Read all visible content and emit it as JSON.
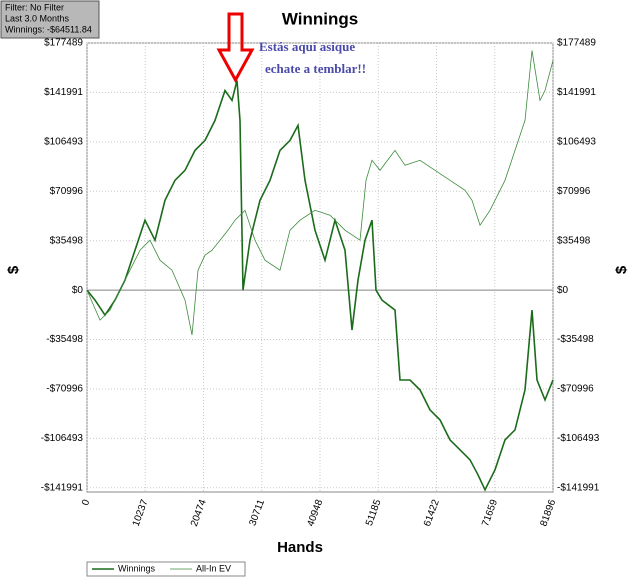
{
  "chart_data": {
    "type": "line",
    "title": "Winnings",
    "x_label": "Hands",
    "y_label": "$",
    "info": [
      "Filter: No Filter",
      "Last 3.0 Months",
      "Winnings: -$64511.84"
    ],
    "annotations": [
      "Estás aquí asique",
      "echate a temblar!!"
    ],
    "xlim": [
      0,
      81896
    ],
    "xticks": [
      0,
      10237,
      20474,
      30711,
      40948,
      51185,
      61422,
      71659,
      81896
    ],
    "ylim": [
      -145000,
      177489
    ],
    "yticks": [
      {
        "value": 177489,
        "label": "$177489"
      },
      {
        "value": 141991,
        "label": "$141991"
      },
      {
        "value": 106493,
        "label": "$106493"
      },
      {
        "value": 70996,
        "label": "$70996"
      },
      {
        "value": 35498,
        "label": "$35498"
      },
      {
        "value": 0,
        "label": "$0"
      },
      {
        "value": -35498,
        "label": "-$35498"
      },
      {
        "value": -70996,
        "label": "-$70996"
      },
      {
        "value": -106493,
        "label": "-$106493"
      },
      {
        "value": -141991,
        "label": "-$141991"
      }
    ],
    "grid": true,
    "series": [
      {
        "name": "Winnings",
        "color": "#1a6b1a",
        "width": 1.6,
        "x": [
          0,
          1406,
          3163,
          4921,
          6678,
          8436,
          10193,
          11951,
          13708,
          15466,
          17223,
          18981,
          20738,
          22496,
          24253,
          25483,
          26362,
          26889,
          27416,
          28646,
          30404,
          32161,
          33919,
          35676,
          37082,
          38312,
          40070,
          41827,
          43585,
          45342,
          46572,
          47627,
          48857,
          50087,
          50790,
          51843,
          54128,
          55006,
          56764,
          58521,
          60279,
          62036,
          63794,
          65551,
          67308,
          68714,
          69945,
          71702,
          73459,
          75217,
          76974,
          78205,
          79083,
          80489,
          81896
        ],
        "values": [
          0,
          -7170,
          -17925,
          -7170,
          7170,
          28680,
          50190,
          35850,
          64530,
          78870,
          86040,
          100380,
          107550,
          121890,
          143400,
          136230,
          150570,
          121890,
          0,
          35850,
          64530,
          78870,
          100380,
          107550,
          118305,
          78870,
          43020,
          21510,
          50190,
          28680,
          -28680,
          7170,
          35850,
          50190,
          0,
          -7170,
          -14340,
          -64530,
          -64530,
          -71700,
          -86040,
          -93210,
          -107550,
          -114720,
          -121890,
          -132645,
          -143400,
          -129060,
          -107550,
          -100380,
          -71700,
          -14340,
          -64530,
          -78870,
          -64511.84
        ]
      },
      {
        "name": "All-In EV",
        "color": "#3c8a3c",
        "width": 0.8,
        "x": [
          0,
          2285,
          4042,
          6678,
          9314,
          11072,
          12829,
          14938,
          17223,
          18453,
          19507,
          20737,
          21968,
          23373,
          24779,
          26010,
          27767,
          29524,
          31282,
          33918,
          35675,
          37433,
          40069,
          42705,
          45341,
          47977,
          49032,
          50086,
          51492,
          54128,
          55886,
          58522,
          61158,
          63794,
          66430,
          67660,
          69066,
          70823,
          73459,
          75217,
          76974,
          78205,
          79611,
          80489,
          81896
        ],
        "values": [
          0,
          -21510,
          -14340,
          7170,
          28680,
          35850,
          21510,
          14340,
          -7170,
          -32265,
          14340,
          25095,
          28680,
          35850,
          43020,
          50190,
          57360,
          35850,
          21510,
          14340,
          43020,
          50190,
          57360,
          53775,
          43020,
          35850,
          78870,
          93210,
          86040,
          100380,
          89625,
          93210,
          86040,
          78870,
          71700,
          64530,
          46605,
          57360,
          78870,
          100380,
          121890,
          172080,
          136230,
          143400,
          164910
        ]
      }
    ]
  }
}
